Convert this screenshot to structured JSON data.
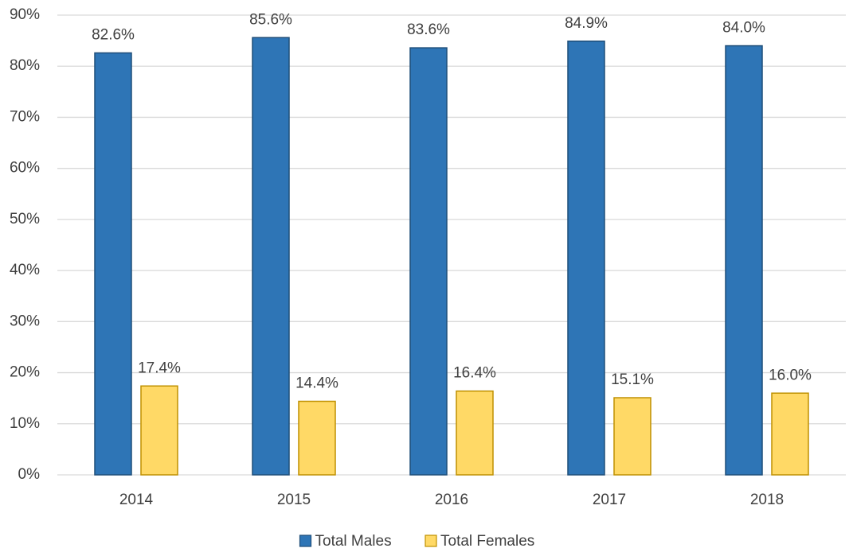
{
  "chart_data": {
    "type": "bar",
    "categories": [
      "2014",
      "2015",
      "2016",
      "2017",
      "2018"
    ],
    "series": [
      {
        "name": "Total Males",
        "color": "#2e75b6",
        "stroke": "#1f4e79",
        "values": [
          82.6,
          85.6,
          83.6,
          84.9,
          84.0
        ],
        "value_labels": [
          "82.6%",
          "85.6%",
          "83.6%",
          "84.9%",
          "84.0%"
        ]
      },
      {
        "name": "Total Females",
        "color": "#ffd966",
        "stroke": "#bf9000",
        "values": [
          17.4,
          14.4,
          16.4,
          15.1,
          16.0
        ],
        "value_labels": [
          "17.4%",
          "14.4%",
          "16.4%",
          "15.1%",
          "16.0%"
        ]
      }
    ],
    "ylim": [
      0,
      90
    ],
    "yticks": [
      {
        "value": 0,
        "label": "0%"
      },
      {
        "value": 10,
        "label": "10%"
      },
      {
        "value": 20,
        "label": "20%"
      },
      {
        "value": 30,
        "label": "30%"
      },
      {
        "value": 40,
        "label": "40%"
      },
      {
        "value": 50,
        "label": "50%"
      },
      {
        "value": 60,
        "label": "60%"
      },
      {
        "value": 70,
        "label": "70%"
      },
      {
        "value": 80,
        "label": "80%"
      },
      {
        "value": 90,
        "label": "90%"
      }
    ],
    "grid": true,
    "legend": "bottom"
  }
}
